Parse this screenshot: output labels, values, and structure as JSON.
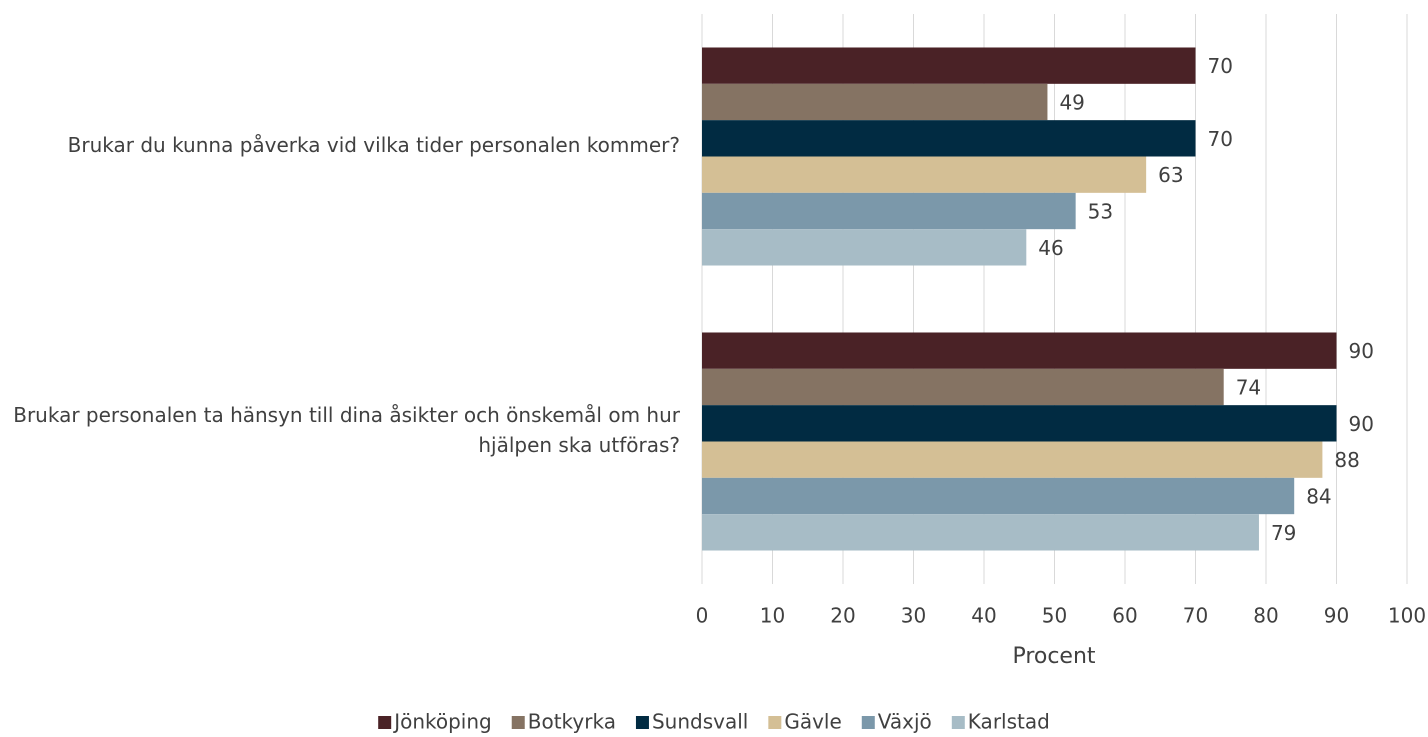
{
  "chart_data": {
    "type": "bar",
    "orientation": "horizontal",
    "x_label": "Procent",
    "categories": [
      "Brukar du kunna påverka vid vilka tider personalen kommer?",
      "Brukar personalen ta hänsyn till dina åsikter och önskemål om hur hjälpen ska utföras?"
    ],
    "series": [
      {
        "name": "Jönköping",
        "color": "#4a2226",
        "values": [
          70,
          90
        ]
      },
      {
        "name": "Botkyrka",
        "color": "#857363",
        "values": [
          49,
          74
        ]
      },
      {
        "name": "Sundsvall",
        "color": "#012b42",
        "values": [
          70,
          90
        ]
      },
      {
        "name": "Gävle",
        "color": "#d4bf95",
        "values": [
          63,
          88
        ]
      },
      {
        "name": "Växjö",
        "color": "#7b98aa",
        "values": [
          53,
          84
        ]
      },
      {
        "name": "Karlstad",
        "color": "#a7bcc6",
        "values": [
          46,
          79
        ]
      }
    ],
    "xlim": [
      0,
      100
    ],
    "xticks": [
      0,
      10,
      20,
      30,
      40,
      50,
      60,
      70,
      80,
      90,
      100
    ],
    "grid": true,
    "legend": "bottom"
  }
}
